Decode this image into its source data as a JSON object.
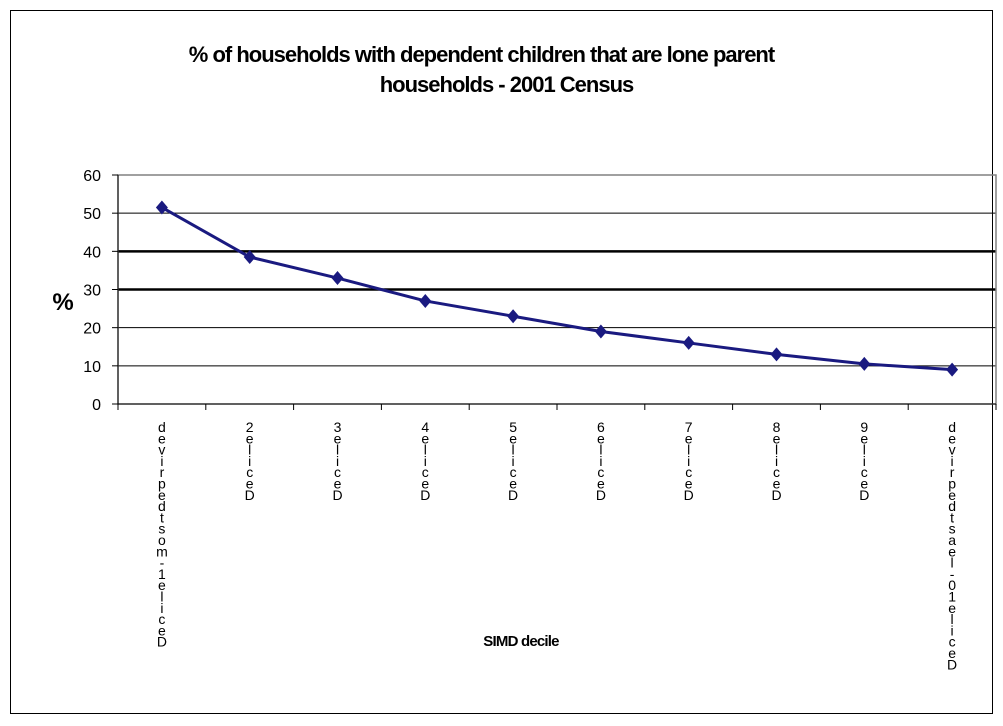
{
  "chart_data": {
    "type": "line",
    "title_line1": "% of households with dependent children that are lone parent",
    "title_line2": "households - 2001 Census",
    "ylabel": "%",
    "xlabel": "SIMD decile",
    "ylim": [
      0,
      60
    ],
    "yticks": [
      0,
      10,
      20,
      30,
      40,
      50,
      60
    ],
    "categories": [
      "Decile 1 - most deprived",
      "Decile 2",
      "Decile 3",
      "Decile 4",
      "Decile 5",
      "Decile 6",
      "Decile 7",
      "Decile 8",
      "Decile 9",
      "Decile 10 - least deprived"
    ],
    "series": [
      {
        "values": [
          51.5,
          38.5,
          33,
          27,
          23,
          19,
          16,
          13,
          10.5,
          9
        ]
      }
    ],
    "gridlines": [
      10,
      20,
      30,
      40,
      50
    ],
    "bold_gridlines": [
      30,
      40
    ],
    "line_color": "#1a1a80",
    "grid_color": "#000000"
  }
}
